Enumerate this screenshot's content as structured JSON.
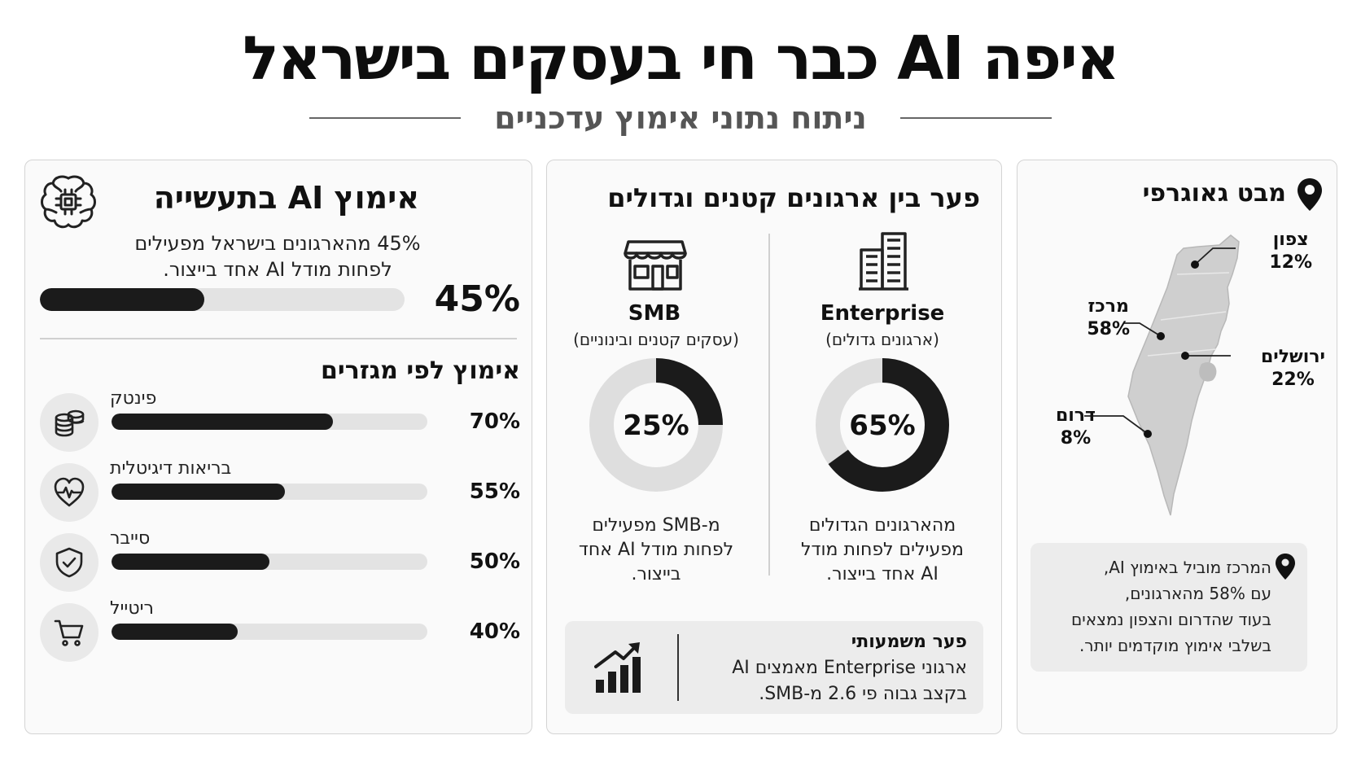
{
  "header": {
    "title": "איפה AI כבר חי בעסקים בישראל",
    "subtitle": "ניתוח נתוני אימוץ עדכניים"
  },
  "adoption": {
    "title": "אימוץ AI בתעשייה",
    "description_line1": "45% מהארגונים בישראל מפעילים",
    "description_line2": "לפחות מודל AI אחד בייצור.",
    "overall_label": "45%",
    "overall_value": 45,
    "sectors_title": "אימוץ לפי מגזרים",
    "sectors": [
      {
        "name": "פינטק",
        "value": 70,
        "label": "70%",
        "icon": "coins-icon"
      },
      {
        "name": "בריאות דיגיטלית",
        "value": 55,
        "label": "55%",
        "icon": "heartbeat-icon"
      },
      {
        "name": "סייבר",
        "value": 50,
        "label": "50%",
        "icon": "shield-check-icon"
      },
      {
        "name": "ריטייל",
        "value": 40,
        "label": "40%",
        "icon": "shopping-cart-icon"
      }
    ]
  },
  "gap": {
    "title": "פער בין ארגונים קטנים וגדולים",
    "enterprise": {
      "name": "Enterprise",
      "sub": "(ארגונים גדולים)",
      "value": 65,
      "label": "65%",
      "desc": [
        "מהארגונים הגדולים",
        "מפעילים לפחות מודל",
        "AI אחד בייצור."
      ]
    },
    "smb": {
      "name": "SMB",
      "sub": "(עסקים קטנים ובינוניים)",
      "value": 25,
      "label": "25%",
      "desc": [
        "מ-SMB מפעילים",
        "לפחות מודל AI אחד",
        "בייצור."
      ]
    },
    "note_title": "פער משמעותי",
    "note_line1": "ארגוני Enterprise מאמצים AI",
    "note_line2": "בקצב גבוה פי 2.6 מ-SMB."
  },
  "geo": {
    "title": "מבט גאוגרפי",
    "regions": [
      {
        "name": "צפון",
        "label": "12%",
        "value": 12
      },
      {
        "name": "מרכז",
        "label": "58%",
        "value": 58
      },
      {
        "name": "ירושלים",
        "label": "22%",
        "value": 22
      },
      {
        "name": "דרום",
        "label": "8%",
        "value": 8
      }
    ],
    "note_lines": [
      "המרכז מוביל באימוץ AI,",
      "עם 58% מהארגונים,",
      "בעוד שהדרום והצפון נמצאים",
      "בשלבי אימוץ מוקדמים יותר."
    ]
  },
  "colors": {
    "dark": "#1b1b1b",
    "track": "#e3e3e3",
    "donut_track": "#dedede",
    "map_fill": "#cfcfcf",
    "panel_bg": "#fafafa"
  },
  "chart_data": [
    {
      "type": "bar",
      "title": "אימוץ לפי מגזרים",
      "categories": [
        "פינטק",
        "בריאות דיגיטלית",
        "סייבר",
        "ריטייל"
      ],
      "values": [
        70,
        55,
        50,
        40
      ],
      "ylim": [
        0,
        100
      ]
    },
    {
      "type": "pie",
      "categories": [
        "Enterprise",
        "SMB"
      ],
      "values": [
        65,
        25
      ],
      "ylim": [
        0,
        100
      ]
    },
    {
      "type": "table",
      "categories": [
        "צפון",
        "מרכז",
        "ירושלים",
        "דרום"
      ],
      "values": [
        12,
        58,
        22,
        8
      ]
    }
  ]
}
